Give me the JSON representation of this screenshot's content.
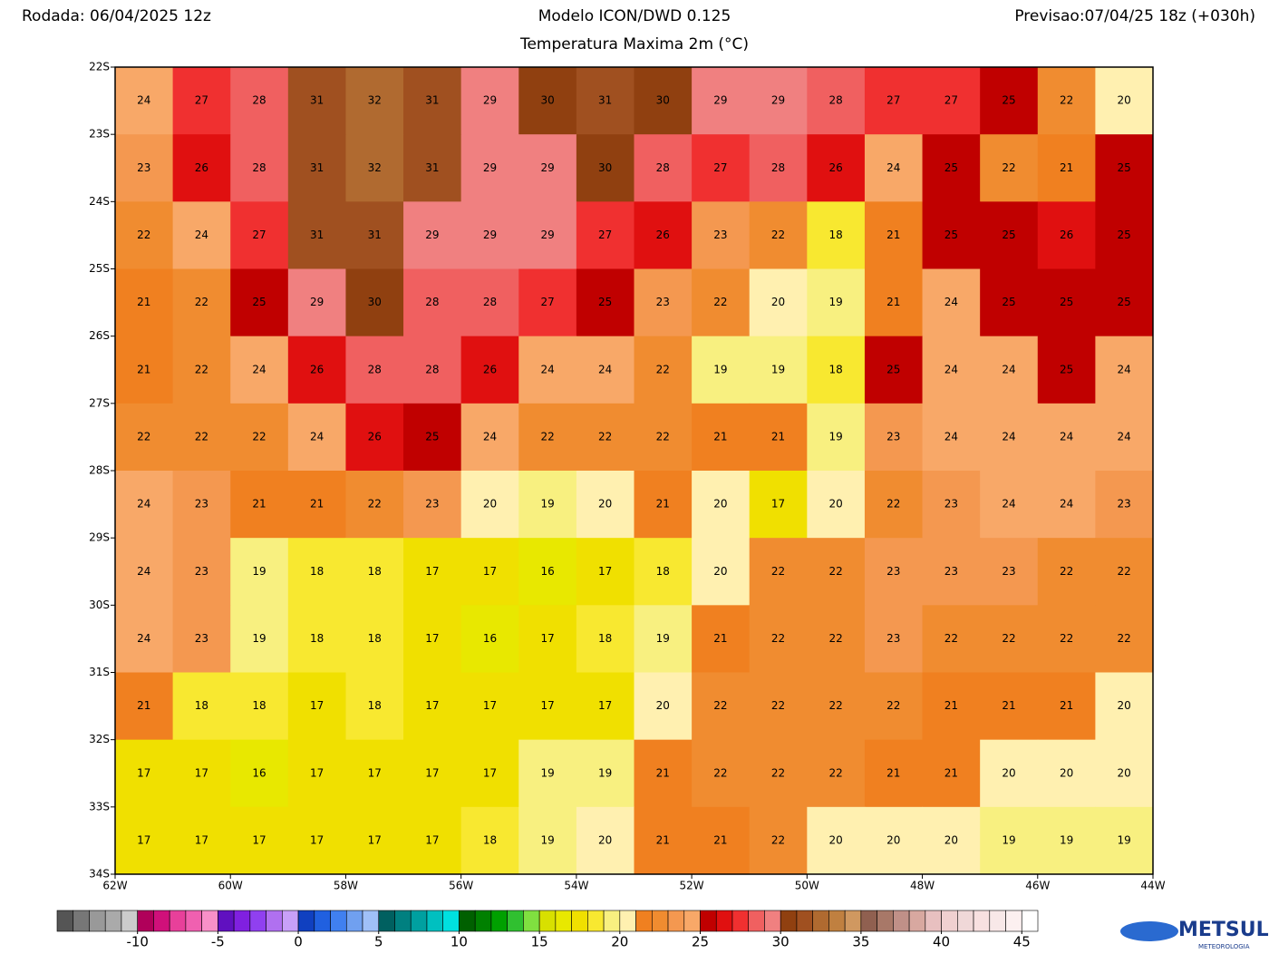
{
  "header": {
    "run": "Rodada: 06/04/2025 12z",
    "model": "Modelo ICON/DWD 0.125",
    "forecast": "Previsao:07/04/25 18z (+030h)",
    "variable": "Temperatura Maxima 2m (°C)"
  },
  "chart_data": {
    "type": "heatmap",
    "x": [
      -61.5,
      -60.5,
      -59.5,
      -58.5,
      -57.5,
      -56.5,
      -55.5,
      -54.5,
      -53.5,
      -52.5,
      -51.5,
      -50.5,
      -49.5,
      -48.5,
      -47.5,
      -46.5,
      -45.5,
      -44.5
    ],
    "y": [
      -22.5,
      -23.5,
      -24.5,
      -25.5,
      -26.5,
      -27.5,
      -28.5,
      -29.5,
      -30.5,
      -31.5,
      -32.5,
      -33.5
    ],
    "values": [
      [
        24,
        27,
        28,
        31,
        32,
        31,
        29,
        30,
        31,
        30,
        29,
        29,
        28,
        27,
        27,
        25,
        22,
        20
      ],
      [
        23,
        26,
        28,
        31,
        32,
        31,
        29,
        29,
        30,
        28,
        27,
        28,
        26,
        24,
        25,
        22,
        21,
        25
      ],
      [
        22,
        24,
        27,
        31,
        31,
        29,
        29,
        29,
        27,
        26,
        23,
        22,
        18,
        21,
        25,
        25,
        26,
        25
      ],
      [
        21,
        22,
        25,
        29,
        30,
        28,
        28,
        27,
        25,
        23,
        22,
        20,
        19,
        21,
        24,
        25,
        25,
        25
      ],
      [
        21,
        22,
        24,
        26,
        28,
        28,
        26,
        24,
        24,
        22,
        19,
        19,
        18,
        25,
        24,
        24,
        25,
        24
      ],
      [
        22,
        22,
        22,
        24,
        26,
        25,
        24,
        22,
        22,
        22,
        21,
        21,
        19,
        23,
        24,
        24,
        24,
        24
      ],
      [
        24,
        23,
        21,
        21,
        22,
        23,
        20,
        19,
        20,
        21,
        20,
        17,
        20,
        22,
        23,
        24,
        24,
        23
      ],
      [
        24,
        23,
        19,
        18,
        18,
        17,
        17,
        16,
        17,
        18,
        20,
        22,
        22,
        23,
        23,
        23,
        22,
        22
      ],
      [
        24,
        23,
        19,
        18,
        18,
        17,
        16,
        17,
        18,
        19,
        21,
        22,
        22,
        23,
        22,
        22,
        22,
        22
      ],
      [
        21,
        18,
        18,
        17,
        18,
        17,
        17,
        17,
        17,
        20,
        22,
        22,
        22,
        22,
        21,
        21,
        21,
        20
      ],
      [
        17,
        17,
        16,
        17,
        17,
        17,
        17,
        19,
        19,
        21,
        22,
        22,
        22,
        21,
        21,
        20,
        20,
        20
      ],
      [
        17,
        17,
        17,
        17,
        17,
        17,
        18,
        19,
        20,
        21,
        21,
        22,
        20,
        20,
        20,
        19,
        19,
        19
      ]
    ],
    "xlim": [
      -62,
      -44
    ],
    "xticks": [
      {
        "value": -62,
        "label": "62W"
      },
      {
        "value": -60,
        "label": "60W"
      },
      {
        "value": -58,
        "label": "58W"
      },
      {
        "value": -56,
        "label": "56W"
      },
      {
        "value": -54,
        "label": "54W"
      },
      {
        "value": -52,
        "label": "52W"
      },
      {
        "value": -50,
        "label": "50W"
      },
      {
        "value": -48,
        "label": "48W"
      },
      {
        "value": -46,
        "label": "46W"
      },
      {
        "value": -44,
        "label": "44W"
      }
    ],
    "ylim": [
      -34,
      -22
    ],
    "yticks": [
      {
        "value": -22,
        "label": "22S"
      },
      {
        "value": -23,
        "label": "23S"
      },
      {
        "value": -24,
        "label": "24S"
      },
      {
        "value": -25,
        "label": "25S"
      },
      {
        "value": -26,
        "label": "26S"
      },
      {
        "value": -27,
        "label": "27S"
      },
      {
        "value": -28,
        "label": "28S"
      },
      {
        "value": -29,
        "label": "29S"
      },
      {
        "value": -30,
        "label": "30S"
      },
      {
        "value": -31,
        "label": "31S"
      },
      {
        "value": -32,
        "label": "32S"
      },
      {
        "value": -33,
        "label": "33S"
      },
      {
        "value": -34,
        "label": "34S"
      }
    ],
    "colorbar": {
      "lim": [
        -15,
        46
      ],
      "ticks": [
        -10,
        -5,
        0,
        5,
        10,
        15,
        20,
        25,
        30,
        35,
        40,
        45
      ],
      "colors": [
        "#555555",
        "#777777",
        "#999999",
        "#aaaaaa",
        "#cccccc",
        "#b0005a",
        "#d0107a",
        "#e8409a",
        "#f060b0",
        "#f890c8",
        "#6010c0",
        "#8020e0",
        "#9040f0",
        "#b070f0",
        "#c8a0f8",
        "#1040c0",
        "#2060e0",
        "#4080f0",
        "#70a0f0",
        "#a0c0f8",
        "#006060",
        "#008080",
        "#00a0a0",
        "#00c0c0",
        "#00e0e0",
        "#006000",
        "#008000",
        "#00a000",
        "#30c030",
        "#80e040",
        "#d8e000",
        "#e8e800",
        "#f0e000",
        "#f8e830",
        "#f8f080",
        "#fff0b0",
        "#f08020",
        "#f08c30",
        "#f49850",
        "#f8a868",
        "#c00000",
        "#e01010",
        "#f03030",
        "#f06060",
        "#f08080",
        "#904010",
        "#a05020",
        "#b06a30",
        "#c08040",
        "#d09860",
        "#906050",
        "#a87868",
        "#c09088",
        "#d8a8a0",
        "#e8c0c0",
        "#f0d0d0",
        "#f0d8d8",
        "#f8e0e0",
        "#f8e8e8",
        "#fcf0f0",
        "#ffffff"
      ]
    }
  },
  "logo": {
    "name": "METSUL",
    "subtitle": "METEOROLOGIA"
  }
}
